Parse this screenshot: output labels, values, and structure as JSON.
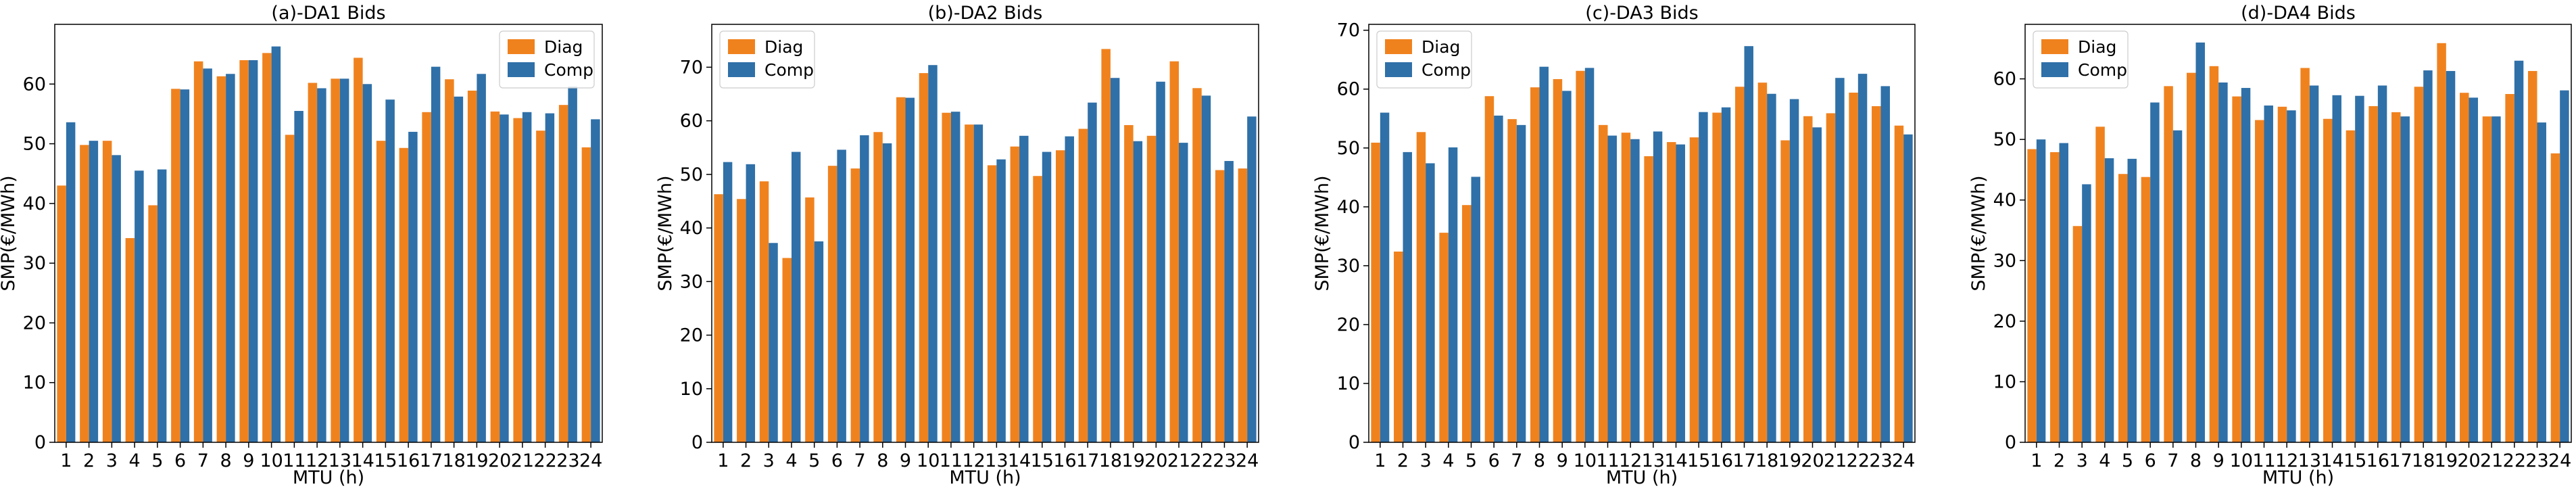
{
  "colors": {
    "diag": "#f0821e",
    "comp": "#2f70a8",
    "frame": "#000000"
  },
  "chart_data": [
    {
      "type": "bar",
      "title": "(a)-DA1 Bids",
      "xlabel": "MTU (h)",
      "ylabel": "SMP(€/MWh)",
      "ylim": [
        0,
        70
      ],
      "yticks": [
        0,
        10,
        20,
        30,
        40,
        50,
        60
      ],
      "legend_position": "top-right",
      "categories": [
        "1",
        "2",
        "3",
        "4",
        "5",
        "6",
        "7",
        "8",
        "9",
        "10",
        "11",
        "12",
        "13",
        "14",
        "15",
        "16",
        "17",
        "18",
        "19",
        "20",
        "21",
        "22",
        "23",
        "24"
      ],
      "series": [
        {
          "name": "Diag",
          "values": [
            43,
            49.8,
            50.5,
            34.2,
            39.7,
            59.2,
            63.8,
            61.3,
            64,
            65.2,
            51.5,
            60.2,
            60.9,
            64.4,
            50.5,
            49.3,
            55.3,
            60.8,
            58.9,
            55.4,
            54.3,
            52.2,
            56.5,
            49.4
          ]
        },
        {
          "name": "Comp",
          "values": [
            53.6,
            50.5,
            48.1,
            45.5,
            45.7,
            59.1,
            62.6,
            61.7,
            64,
            66.3,
            55.5,
            59.3,
            60.9,
            60,
            57.4,
            52,
            62.9,
            57.9,
            61.7,
            54.9,
            55.3,
            55.1,
            59.6,
            54.1
          ]
        }
      ]
    },
    {
      "type": "bar",
      "title": "(b)-DA2 Bids",
      "xlabel": "MTU (h)",
      "ylabel": "SMP(€/MWh)",
      "ylim": [
        0,
        78
      ],
      "yticks": [
        0,
        10,
        20,
        30,
        40,
        50,
        60,
        70
      ],
      "legend_position": "top-left",
      "categories": [
        "1",
        "2",
        "3",
        "4",
        "5",
        "6",
        "7",
        "8",
        "9",
        "10",
        "11",
        "12",
        "13",
        "14",
        "15",
        "16",
        "17",
        "18",
        "19",
        "20",
        "21",
        "22",
        "23",
        "24"
      ],
      "series": [
        {
          "name": "Diag",
          "values": [
            46.3,
            45.4,
            48.7,
            34.4,
            45.7,
            51.6,
            51.1,
            57.9,
            64.4,
            68.9,
            61.5,
            59.3,
            51.7,
            55.2,
            49.7,
            54.5,
            58.5,
            73.4,
            59.2,
            57.2,
            71.1,
            66.1,
            50.8,
            51.1
          ]
        },
        {
          "name": "Comp",
          "values": [
            52.3,
            51.9,
            37.2,
            54.2,
            37.5,
            54.6,
            57.3,
            55.8,
            64.3,
            70.4,
            61.7,
            59.3,
            52.8,
            57.2,
            54.2,
            57.1,
            63.4,
            68,
            56.2,
            67.3,
            55.9,
            64.7,
            52.5,
            60.8
          ]
        }
      ]
    },
    {
      "type": "bar",
      "title": "(c)-DA3 Bids",
      "xlabel": "MTU (h)",
      "ylabel": "SMP(€/MWh)",
      "ylim": [
        0,
        71
      ],
      "yticks": [
        0,
        10,
        20,
        30,
        40,
        50,
        60,
        70
      ],
      "legend_position": "top-left",
      "categories": [
        "1",
        "2",
        "3",
        "4",
        "5",
        "6",
        "7",
        "8",
        "9",
        "10",
        "11",
        "12",
        "13",
        "14",
        "15",
        "16",
        "17",
        "18",
        "19",
        "20",
        "21",
        "22",
        "23",
        "24"
      ],
      "series": [
        {
          "name": "Diag",
          "values": [
            50.9,
            32.4,
            52.7,
            35.6,
            40.3,
            58.8,
            54.9,
            60.3,
            61.7,
            63.1,
            53.9,
            52.6,
            48.6,
            51,
            51.8,
            56,
            60.4,
            61.1,
            51.3,
            55.4,
            55.9,
            59.4,
            57.1,
            53.8
          ]
        },
        {
          "name": "Comp",
          "values": [
            56,
            49.3,
            47.4,
            50.1,
            45.1,
            55.5,
            53.9,
            63.8,
            59.7,
            63.6,
            52.1,
            51.5,
            52.8,
            50.6,
            56.1,
            56.9,
            67.3,
            59.2,
            58.3,
            53.5,
            61.9,
            62.6,
            60.5,
            52.3
          ]
        }
      ]
    },
    {
      "type": "bar",
      "title": "(d)-DA4 Bids",
      "xlabel": "MTU (h)",
      "ylabel": "SMP(€/MWh)",
      "ylim": [
        0,
        69
      ],
      "yticks": [
        0,
        10,
        20,
        30,
        40,
        50,
        60
      ],
      "legend_position": "top-left",
      "categories": [
        "1",
        "2",
        "3",
        "4",
        "5",
        "6",
        "7",
        "8",
        "9",
        "10",
        "11",
        "12",
        "13",
        "14",
        "15",
        "16",
        "17",
        "18",
        "19",
        "20",
        "21",
        "22",
        "23",
        "24"
      ],
      "series": [
        {
          "name": "Diag",
          "values": [
            48.4,
            47.9,
            35.7,
            52.1,
            44.3,
            43.8,
            58.8,
            61,
            62.1,
            57.1,
            53.2,
            55.4,
            61.8,
            53.4,
            51.5,
            55.5,
            54.5,
            58.7,
            65.9,
            57.7,
            53.8,
            57.5,
            61.3,
            47.7
          ]
        },
        {
          "name": "Comp",
          "values": [
            50,
            49.4,
            42.6,
            46.9,
            46.8,
            56.1,
            51.5,
            66,
            59.4,
            58.5,
            55.6,
            54.8,
            58.9,
            57.3,
            57.2,
            58.9,
            53.8,
            61.4,
            61.3,
            56.9,
            53.8,
            63,
            52.8,
            58.1
          ]
        }
      ]
    }
  ]
}
